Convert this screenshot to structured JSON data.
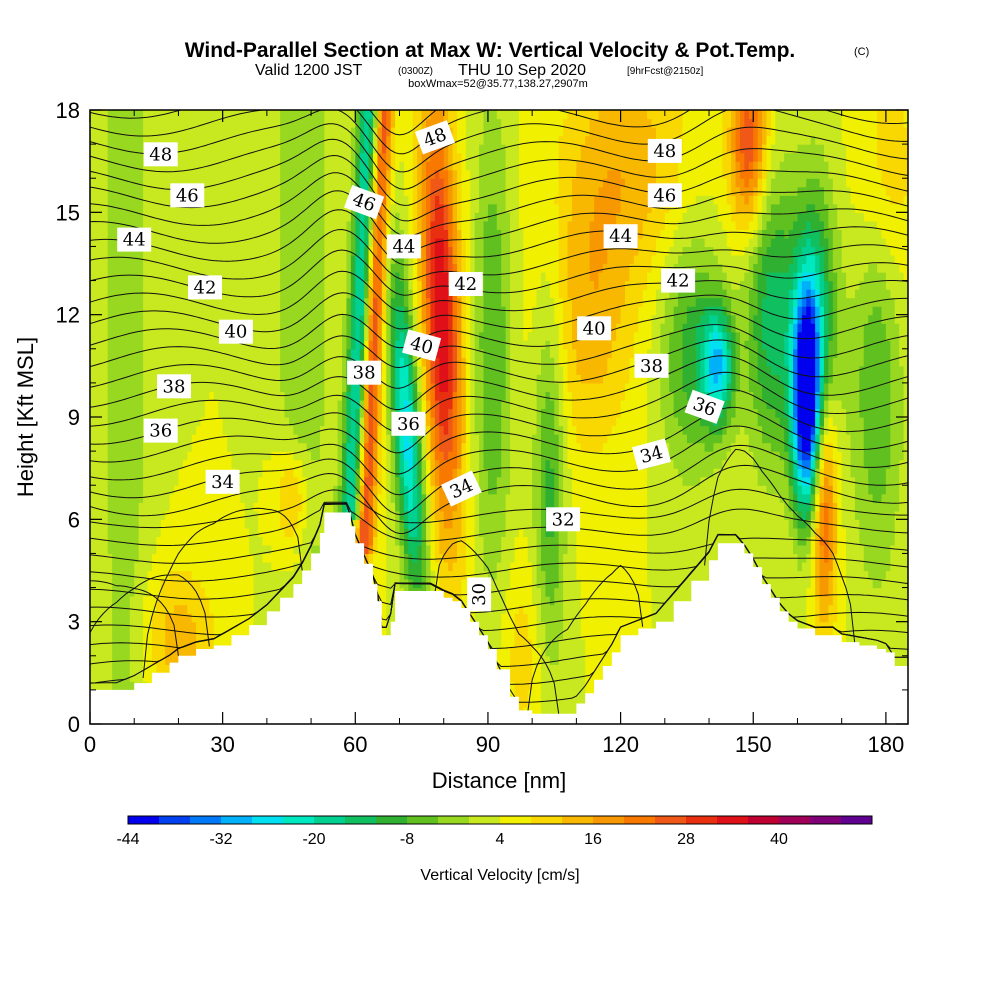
{
  "chart_data": {
    "type": "heatmap",
    "title": "Wind-Parallel Section at Max W: Vertical Velocity & Pot.Temp.",
    "title_mark": "(C)",
    "subtitle_prefix": "Valid 1200 JST",
    "subtitle_utc": "(0300Z)",
    "subtitle_date": "THU 10 Sep 2020",
    "subtitle_fcst": "[9hrFcst@2150z]",
    "subtitle2": "boxWmax=52@35.77,138.27,2907m",
    "xlabel": "Distance [nm]",
    "ylabel": "Height [Kft MSL]",
    "xlim": [
      0,
      185
    ],
    "ylim": [
      0,
      18
    ],
    "x_ticks": [
      0,
      30,
      60,
      90,
      120,
      150,
      180
    ],
    "y_ticks": [
      0,
      3,
      6,
      9,
      12,
      15,
      18
    ],
    "colorbar": {
      "label": "Vertical Velocity [cm/s]",
      "min": -44,
      "max": 52,
      "step": 4,
      "tick_labels": [
        "-44",
        "-32",
        "-20",
        "-8",
        "4",
        "16",
        "28",
        "40"
      ],
      "colors": [
        "#0000ee",
        "#0040f0",
        "#0078f8",
        "#00b0f8",
        "#00e0f0",
        "#00e8c0",
        "#00d090",
        "#10c060",
        "#30b030",
        "#60c020",
        "#98d820",
        "#c8e820",
        "#f0f000",
        "#f8d800",
        "#f8b800",
        "#f89800",
        "#f87800",
        "#f05818",
        "#e83010",
        "#e01018",
        "#c00030",
        "#a00058",
        "#800078",
        "#600090"
      ]
    },
    "isentrope_labels": [
      {
        "text": "48",
        "x": 16,
        "y": 16.7,
        "rot": 0
      },
      {
        "text": "46",
        "x": 22,
        "y": 15.5,
        "rot": 0
      },
      {
        "text": "44",
        "x": 10,
        "y": 14.2,
        "rot": 0
      },
      {
        "text": "42",
        "x": 26,
        "y": 12.8,
        "rot": 0
      },
      {
        "text": "40",
        "x": 33,
        "y": 11.5,
        "rot": 0
      },
      {
        "text": "38",
        "x": 19,
        "y": 9.9,
        "rot": 0
      },
      {
        "text": "36",
        "x": 16,
        "y": 8.6,
        "rot": 0
      },
      {
        "text": "34",
        "x": 30,
        "y": 7.1,
        "rot": 0
      },
      {
        "text": "48",
        "x": 78,
        "y": 17.2,
        "rot": -20
      },
      {
        "text": "46",
        "x": 62,
        "y": 15.3,
        "rot": 20
      },
      {
        "text": "44",
        "x": 71,
        "y": 14.0,
        "rot": 0
      },
      {
        "text": "42",
        "x": 85,
        "y": 12.9,
        "rot": 0
      },
      {
        "text": "40",
        "x": 75,
        "y": 11.1,
        "rot": 15
      },
      {
        "text": "38",
        "x": 62,
        "y": 10.3,
        "rot": 0
      },
      {
        "text": "36",
        "x": 72,
        "y": 8.8,
        "rot": 0
      },
      {
        "text": "34",
        "x": 84,
        "y": 6.9,
        "rot": -25
      },
      {
        "text": "30",
        "x": 88,
        "y": 3.8,
        "rot": -90
      },
      {
        "text": "32",
        "x": 107,
        "y": 6.0,
        "rot": 0
      },
      {
        "text": "48",
        "x": 130,
        "y": 16.8,
        "rot": 0
      },
      {
        "text": "46",
        "x": 130,
        "y": 15.5,
        "rot": 0
      },
      {
        "text": "44",
        "x": 120,
        "y": 14.3,
        "rot": 0
      },
      {
        "text": "42",
        "x": 133,
        "y": 13.0,
        "rot": 0
      },
      {
        "text": "40",
        "x": 114,
        "y": 11.6,
        "rot": 0
      },
      {
        "text": "38",
        "x": 127,
        "y": 10.5,
        "rot": 0
      },
      {
        "text": "36",
        "x": 139,
        "y": 9.3,
        "rot": 20
      },
      {
        "text": "34",
        "x": 127,
        "y": 7.9,
        "rot": -15
      }
    ],
    "terrain_height": [
      [
        0,
        1.0
      ],
      [
        6,
        1.0
      ],
      [
        10,
        1.2
      ],
      [
        14,
        1.5
      ],
      [
        18,
        1.8
      ],
      [
        20,
        2.0
      ],
      [
        24,
        2.2
      ],
      [
        28,
        2.3
      ],
      [
        32,
        2.6
      ],
      [
        36,
        2.9
      ],
      [
        40,
        3.3
      ],
      [
        43,
        3.7
      ],
      [
        46,
        4.1
      ],
      [
        48,
        4.5
      ],
      [
        50,
        5.0
      ],
      [
        52,
        5.6
      ],
      [
        53,
        6.2
      ],
      [
        58,
        6.2
      ],
      [
        59,
        5.8
      ],
      [
        60,
        5.3
      ],
      [
        62,
        4.7
      ],
      [
        64,
        4.1
      ],
      [
        65,
        3.6
      ],
      [
        66,
        2.6
      ],
      [
        67,
        2.6
      ],
      [
        68,
        3.0
      ],
      [
        69,
        3.9
      ],
      [
        77,
        3.9
      ],
      [
        80,
        3.7
      ],
      [
        82,
        3.6
      ],
      [
        84,
        3.4
      ],
      [
        86,
        3.0
      ],
      [
        88,
        2.6
      ],
      [
        90,
        2.2
      ],
      [
        92,
        1.6
      ],
      [
        95,
        0.8
      ],
      [
        97,
        0.4
      ],
      [
        100,
        0.3
      ],
      [
        104,
        0.3
      ],
      [
        108,
        0.3
      ],
      [
        110,
        0.6
      ],
      [
        112,
        0.9
      ],
      [
        114,
        1.3
      ],
      [
        116,
        1.7
      ],
      [
        118,
        2.1
      ],
      [
        120,
        2.6
      ],
      [
        124,
        2.8
      ],
      [
        128,
        3.0
      ],
      [
        132,
        3.6
      ],
      [
        136,
        4.2
      ],
      [
        140,
        4.8
      ],
      [
        142,
        5.3
      ],
      [
        146,
        5.3
      ],
      [
        148,
        5.0
      ],
      [
        150,
        4.6
      ],
      [
        152,
        4.1
      ],
      [
        154,
        3.7
      ],
      [
        156,
        3.3
      ],
      [
        158,
        3.0
      ],
      [
        160,
        2.8
      ],
      [
        164,
        2.6
      ],
      [
        168,
        2.6
      ],
      [
        170,
        2.4
      ],
      [
        174,
        2.3
      ],
      [
        178,
        2.2
      ],
      [
        180,
        2.1
      ],
      [
        182,
        1.7
      ],
      [
        185,
        1.7
      ]
    ]
  }
}
